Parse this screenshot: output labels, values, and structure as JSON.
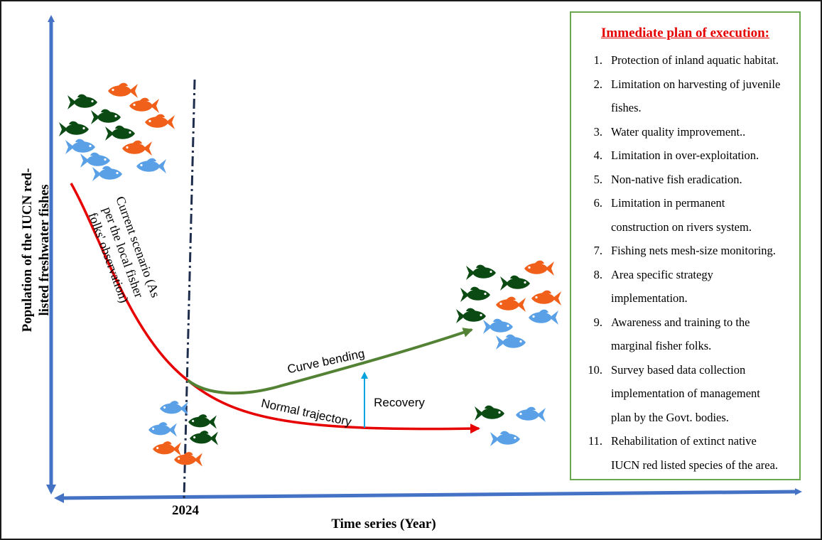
{
  "y_axis_label_line1": "Population of the IUCN red-",
  "y_axis_label_line2": "listed freshwater fishes",
  "x_axis_label": "Time series (Year)",
  "year_marker": "2024",
  "current_scenario": [
    "Current scenario (As",
    "per the local fisher",
    "folks' observation)"
  ],
  "curve_bending": "Curve bending",
  "normal_trajectory": "Normal trajectory",
  "recovery": "Recovery",
  "plan": {
    "title": "Immediate plan of execution:",
    "items": [
      {
        "num": "1.",
        "lines": [
          "Protection of inland aquatic habitat."
        ]
      },
      {
        "num": "2.",
        "lines": [
          "Limitation on harvesting of juvenile",
          "fishes."
        ]
      },
      {
        "num": "3.",
        "lines": [
          "Water quality improvement.."
        ]
      },
      {
        "num": "4.",
        "lines": [
          "Limitation in over-exploitation."
        ]
      },
      {
        "num": "5.",
        "lines": [
          "Non-native fish eradication."
        ]
      },
      {
        "num": "6.",
        "lines": [
          "Limitation in permanent",
          "construction on rivers system."
        ]
      },
      {
        "num": "7.",
        "lines": [
          "Fishing nets mesh-size monitoring."
        ]
      },
      {
        "num": "8.",
        "lines": [
          "Area specific strategy",
          "implementation."
        ]
      },
      {
        "num": "9.",
        "lines": [
          "Awareness and training to the",
          "marginal fisher folks."
        ]
      },
      {
        "num": "10.",
        "lines": [
          "Survey based data collection",
          "implementation of  management",
          "plan by the Govt. bodies."
        ]
      },
      {
        "num": "11.",
        "lines": [
          "Rehabilitation of  extinct native",
          "IUCN red listed species of the area."
        ]
      }
    ]
  },
  "colors": {
    "axis": "#4472c4",
    "decline_curve": "#e60000",
    "recovery_curve": "#548235",
    "recovery_arrow": "#00a3e0",
    "divider": "#1f2d4d",
    "plan_border": "#6aa84f",
    "fish_dark_green": "#0b4a12",
    "fish_orange": "#f0601a",
    "fish_blue": "#5aa0e6"
  },
  "icons": {
    "fish": "fish-icon"
  }
}
